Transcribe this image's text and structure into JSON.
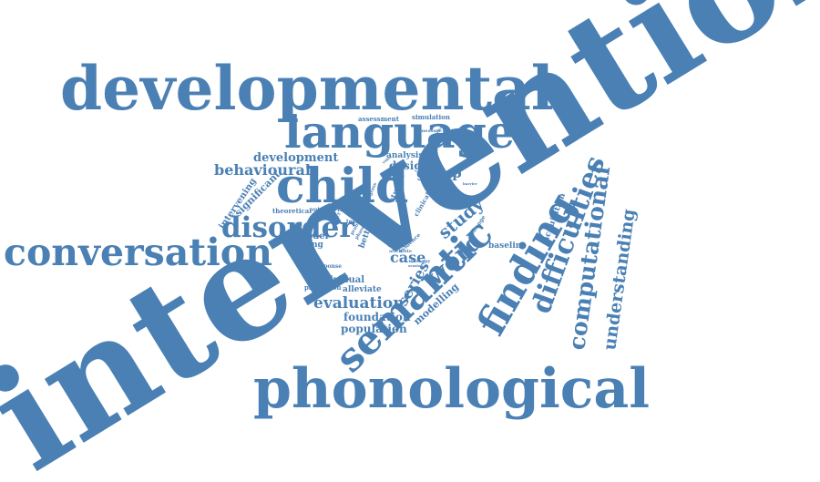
{
  "word_cloud": {
    "color": "#4A80B4",
    "words": [
      {
        "text": "intervention",
        "rank": 1
      },
      {
        "text": "developmental",
        "rank": 2
      },
      {
        "text": "phonological",
        "rank": 3
      },
      {
        "text": "conversation",
        "rank": 4
      },
      {
        "text": "language",
        "rank": 5
      },
      {
        "text": "child",
        "rank": 6
      },
      {
        "text": "semantic",
        "rank": 7
      },
      {
        "text": "finding",
        "rank": 8
      },
      {
        "text": "disorder",
        "rank": 9
      },
      {
        "text": "difficulties",
        "rank": 10
      },
      {
        "text": "computational",
        "rank": 11
      },
      {
        "text": "understanding",
        "rank": 12
      },
      {
        "text": "word",
        "rank": 13
      },
      {
        "text": "study",
        "rank": 14
      },
      {
        "text": "behavioural",
        "rank": 15
      },
      {
        "text": "evaluation",
        "rank": 16
      },
      {
        "text": "series",
        "rank": 17
      },
      {
        "text": "case",
        "rank": 18
      },
      {
        "text": "group",
        "rank": 19
      },
      {
        "text": "development",
        "rank": 20
      },
      {
        "text": "design",
        "rank": 21
      },
      {
        "text": "significant",
        "rank": 22
      },
      {
        "text": "intervening",
        "rank": 23
      },
      {
        "text": "foundation",
        "rank": 24
      },
      {
        "text": "population",
        "rank": 25
      },
      {
        "text": "individual",
        "rank": 26
      },
      {
        "text": "modelling",
        "rank": 27
      },
      {
        "text": "alleviate",
        "rank": 28
      },
      {
        "text": "prediction",
        "rank": 29
      },
      {
        "text": "differing",
        "rank": 30
      },
      {
        "text": "model",
        "rank": 31
      },
      {
        "text": "theoretical",
        "rank": 32
      },
      {
        "text": "assessment",
        "rank": 33
      },
      {
        "text": "simulation",
        "rank": 34
      },
      {
        "text": "analysis",
        "rank": 35
      },
      {
        "text": "baseline",
        "rank": 36
      },
      {
        "text": "acquisition",
        "rank": 37
      },
      {
        "text": "outcome",
        "rank": 38
      },
      {
        "text": "target",
        "rank": 39
      },
      {
        "text": "better",
        "rank": 40
      },
      {
        "text": "item",
        "rank": 41
      },
      {
        "text": "aged",
        "rank": 42
      },
      {
        "text": "result",
        "rank": 43
      },
      {
        "text": "response",
        "rank": 44
      },
      {
        "text": "studies",
        "rank": 45
      },
      {
        "text": "measure",
        "rank": 46
      },
      {
        "text": "clinical",
        "rank": 47
      },
      {
        "text": "evidence",
        "rank": 48
      },
      {
        "text": "change",
        "rank": 49
      },
      {
        "text": "therapy",
        "rank": 50
      },
      {
        "text": "testing",
        "rank": 51
      },
      {
        "text": "data",
        "rank": 52
      },
      {
        "text": "attribute",
        "rank": 53
      },
      {
        "text": "session",
        "rank": 54
      },
      {
        "text": "progress",
        "rank": 55
      },
      {
        "text": "barrier",
        "rank": 56
      },
      {
        "text": "effect",
        "rank": 57
      },
      {
        "text": "profile",
        "rank": 58
      },
      {
        "text": "phase",
        "rank": 59
      },
      {
        "text": "video",
        "rank": 60
      },
      {
        "text": "lexical",
        "rank": 61
      }
    ]
  }
}
